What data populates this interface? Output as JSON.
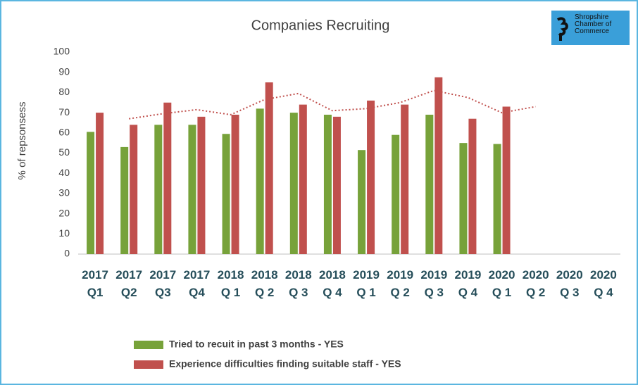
{
  "chart_data": {
    "type": "bar",
    "title": "Companies Recruiting",
    "y_label": "% of repsonsess",
    "logo_text": "Shropshire\nChamber of\nCommerce",
    "categories": [
      "2017\nQ1",
      "2017\nQ2",
      "2017\nQ3",
      "2017\nQ4",
      "2018\nQ 1",
      "2018\nQ 2",
      "2018\nQ 3",
      "2018\nQ 4",
      "2019\nQ 1",
      "2019\nQ 2",
      "2019\nQ 3",
      "2019\nQ 4",
      "2020\nQ 1",
      "2020\nQ 2",
      "2020\nQ 3",
      "2020\nQ 4"
    ],
    "series": [
      {
        "name": "Tried to recuit in past 3 months - YES",
        "color": "#77a23a",
        "values": [
          60.5,
          53,
          64,
          64,
          59.5,
          72,
          70,
          69,
          51.5,
          59,
          69,
          55,
          54.5,
          null,
          null,
          null
        ]
      },
      {
        "name": "Experience difficulties finding suitable staff - YES",
        "color": "#c0504d",
        "values": [
          70,
          64,
          75,
          68,
          69,
          85,
          74,
          68,
          76,
          74,
          87.5,
          67,
          73,
          null,
          null,
          null
        ]
      }
    ],
    "trendline": {
      "color": "#c0504d",
      "values": [
        null,
        67,
        69.5,
        71.5,
        69,
        76.5,
        79.5,
        71,
        72,
        75,
        81,
        77.5,
        70,
        73,
        null,
        null
      ]
    },
    "ylim": [
      0,
      100
    ],
    "yticks": [
      0,
      10,
      20,
      30,
      40,
      50,
      60,
      70,
      80,
      90,
      100
    ],
    "grid": false
  }
}
